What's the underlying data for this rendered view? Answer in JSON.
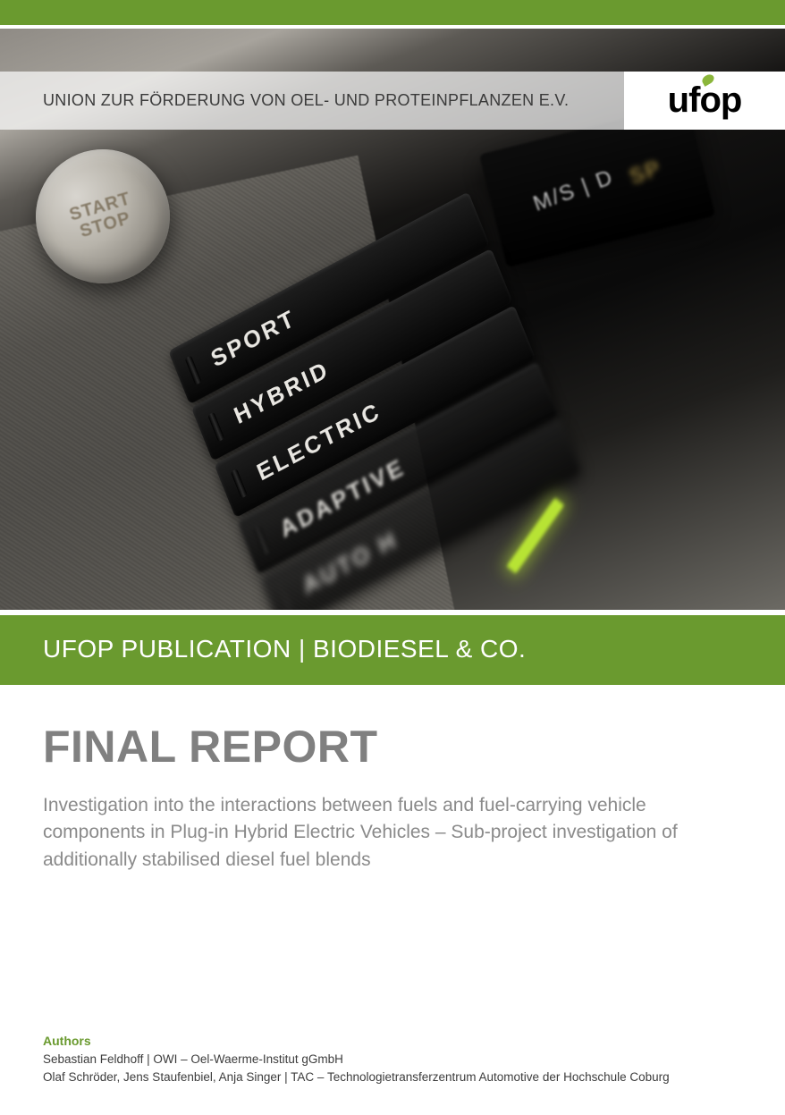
{
  "colors": {
    "brand_green": "#6a9a2f",
    "title_grey": "#808080",
    "subtitle_grey": "#8a8a8a",
    "body_text": "#3c3c3c",
    "header_text": "#3a3a3a",
    "white": "#ffffff",
    "led_green": "#b7e334"
  },
  "header": {
    "org_name": "UNION ZUR FÖRDERUNG VON OEL- UND PROTEINPFLANZEN E.V.",
    "logo_text_prefix": "uf",
    "logo_text_suffix": "p"
  },
  "hero": {
    "start_stop": "START\nSTOP",
    "gear_text": "M/S | D",
    "gear_sp": "SP",
    "mode_buttons": [
      "SPORT",
      "HYBRID",
      "ELECTRIC",
      "ADAPTIVE",
      "AUTO H"
    ]
  },
  "publication_bar": "UFOP PUBLICATION | BIODIESEL & CO.",
  "report": {
    "title": "FINAL REPORT",
    "subtitle": "Investigation into the interactions between fuels and fuel-carrying vehicle components in Plug-in Hybrid Electric Vehicles – Sub-project investigation of additionally stabilised diesel fuel blends"
  },
  "authors": {
    "label": "Authors",
    "lines": [
      "Sebastian Feldhoff | OWI – Oel-Waerme-Institut gGmbH",
      "Olaf Schröder, Jens Staufenbiel, Anja Singer | TAC – Technologietransferzentrum Automotive der Hochschule Coburg"
    ]
  },
  "typography": {
    "final_title_fontsize": 50,
    "subtitle_fontsize": 21,
    "pub_bar_fontsize": 28,
    "header_fontsize": 18,
    "author_fontsize": 13.5
  }
}
